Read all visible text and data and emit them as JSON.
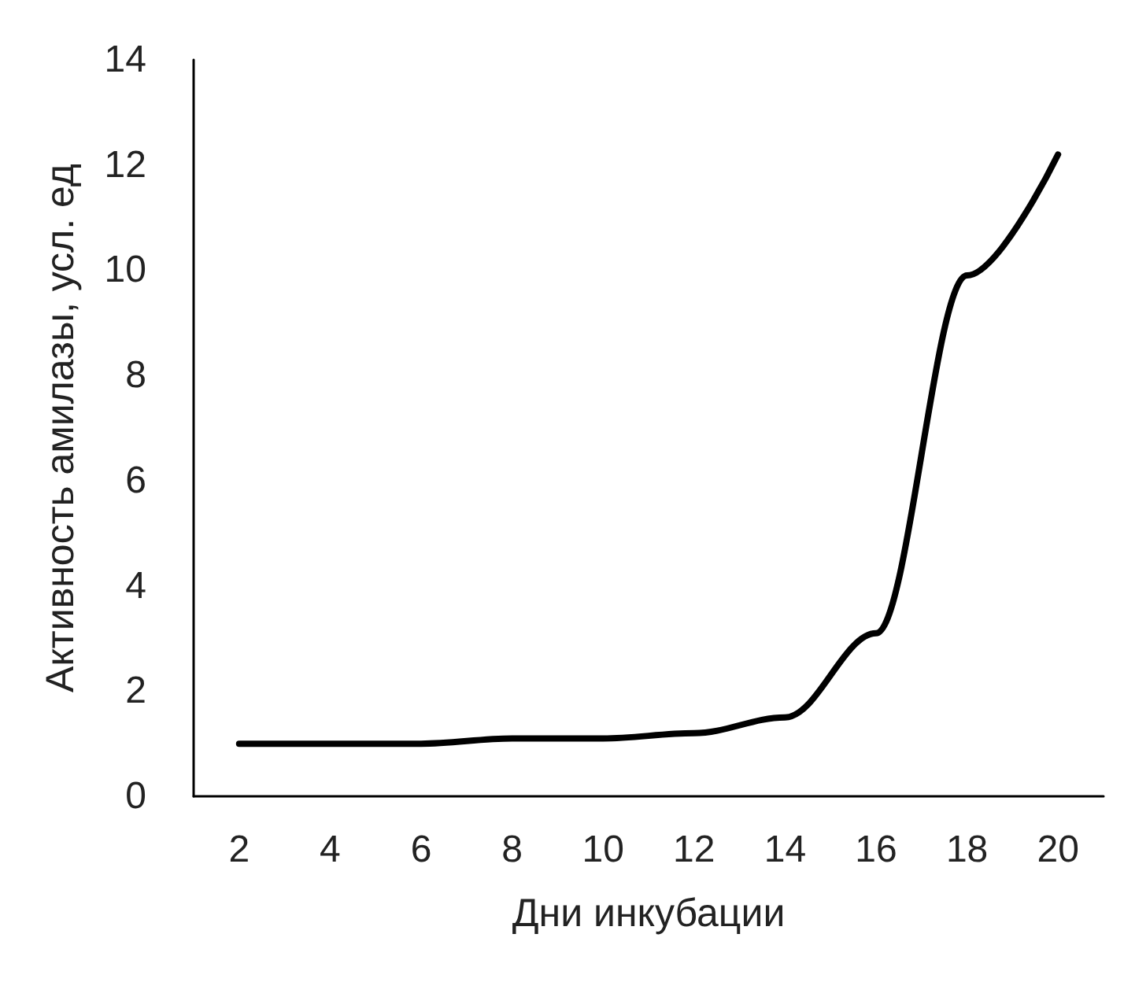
{
  "chart_data": {
    "type": "line",
    "xlabel": "Дни инкубации",
    "ylabel": "Активность амилазы, усл. ед",
    "categories": [
      "2",
      "4",
      "6",
      "8",
      "10",
      "12",
      "14",
      "16",
      "18",
      "20"
    ],
    "series": [
      {
        "color": "#000000",
        "values": [
          1.0,
          1.0,
          1.0,
          1.1,
          1.1,
          1.2,
          1.5,
          3.1,
          9.9,
          12.2
        ]
      }
    ],
    "ylim": [
      0,
      14
    ],
    "yticks": [
      0,
      2,
      4,
      6,
      8,
      10,
      12,
      14
    ],
    "grid": false,
    "marker": "none",
    "line_style": "solid"
  }
}
